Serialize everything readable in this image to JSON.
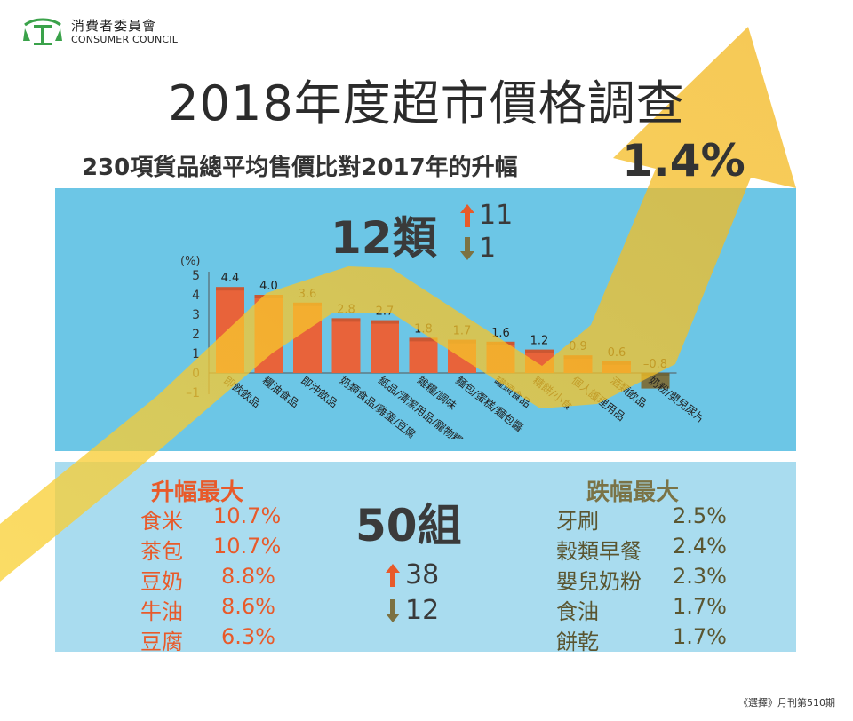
{
  "logo": {
    "cn": "消費者委員會",
    "en": "CONSUMER COUNCIL"
  },
  "title": "2018年度超市價格調查",
  "subtitle": {
    "text": "230項貨品總平均售價比對2017年的升幅",
    "value": "1.4%"
  },
  "categories_summary": {
    "count": "12類",
    "up": "11",
    "down": "1"
  },
  "groups_summary": {
    "count": "50組",
    "up": "38",
    "down": "12"
  },
  "largest_increase": {
    "title": "升幅最大",
    "items": [
      {
        "name": "食米",
        "pct": "10.7%"
      },
      {
        "name": "茶包",
        "pct": "10.7%"
      },
      {
        "name": "豆奶",
        "pct": "8.8%"
      },
      {
        "name": "牛油",
        "pct": "8.6%"
      },
      {
        "name": "豆腐",
        "pct": "6.3%"
      }
    ]
  },
  "largest_decrease": {
    "title": "跌幅最大",
    "items": [
      {
        "name": "牙刷",
        "pct": "2.5%"
      },
      {
        "name": "穀類早餐",
        "pct": "2.4%"
      },
      {
        "name": "嬰兒奶粉",
        "pct": "2.3%"
      },
      {
        "name": "食油",
        "pct": "1.7%"
      },
      {
        "name": "餅乾",
        "pct": "1.7%"
      }
    ]
  },
  "source": "《選擇》月刊第510期",
  "colors": {
    "positive_bar": "#e8633a",
    "negative_bar": "#7c7242",
    "panel_top": "#6cc6e6",
    "panel_bottom": "#a9dcef",
    "arrow": "#f6c51d",
    "orange_text": "#e85a2a"
  },
  "chart_data": {
    "type": "bar",
    "ylabel": "(%)",
    "ylim": [
      -1,
      5
    ],
    "yticks": [
      -1,
      0,
      1,
      2,
      3,
      4,
      5
    ],
    "categories": [
      "即飲飲品",
      "糧油食品",
      "即沖飲品",
      "奶類食品/雞蛋/豆腐",
      "紙品/清潔用品/寵物糧",
      "雜糧/調味",
      "麵包/蛋糕/麵包醬",
      "罐頭食品",
      "糖餅/小食",
      "個人護理用品",
      "酒類飲品",
      "奶粉/嬰兒尿片"
    ],
    "values": [
      4.4,
      4.0,
      3.6,
      2.8,
      2.7,
      1.8,
      1.7,
      1.6,
      1.2,
      0.9,
      0.6,
      -0.8
    ],
    "value_labels": [
      "4.4",
      "4.0",
      "3.6",
      "2.8",
      "2.7",
      "1.8",
      "1.7",
      "1.6",
      "1.2",
      "0.9",
      "0.6",
      "–0.8"
    ]
  }
}
